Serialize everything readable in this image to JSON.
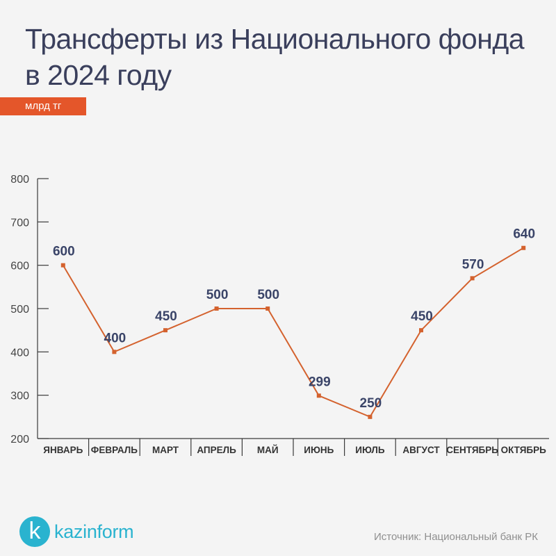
{
  "header": {
    "title": "Трансферты из Национального фонда в 2024 году",
    "unit": "млрд тг"
  },
  "footer": {
    "logo_letter": "k",
    "logo_text": "kazinform",
    "source": "Источник: Национальный банк РК"
  },
  "colors": {
    "accent": "#e4562a",
    "line": "#d4622e",
    "label": "#3a4468",
    "axis": "#3a3a3a",
    "logo": "#2ab3cf"
  },
  "chart_data": {
    "type": "line",
    "title": "Трансферты из Национального фонда в 2024 году",
    "ylabel": "млрд тг",
    "xlabel": "",
    "categories": [
      "ЯНВАРЬ",
      "ФЕВРАЛЬ",
      "МАРТ",
      "АПРЕЛЬ",
      "МАЙ",
      "ИЮНЬ",
      "ИЮЛЬ",
      "АВГУСТ",
      "СЕНТЯБРЬ",
      "ОКТЯБРЬ"
    ],
    "values": [
      600,
      400,
      450,
      500,
      500,
      299,
      250,
      450,
      570,
      640
    ],
    "data_labels": [
      "600",
      "400",
      "450",
      "500",
      "500",
      "299",
      "250",
      "450",
      "570",
      "640"
    ],
    "ylim": [
      200,
      800
    ],
    "yticks": [
      200,
      300,
      400,
      500,
      600,
      700,
      800
    ],
    "grid": false,
    "legend": "none"
  }
}
